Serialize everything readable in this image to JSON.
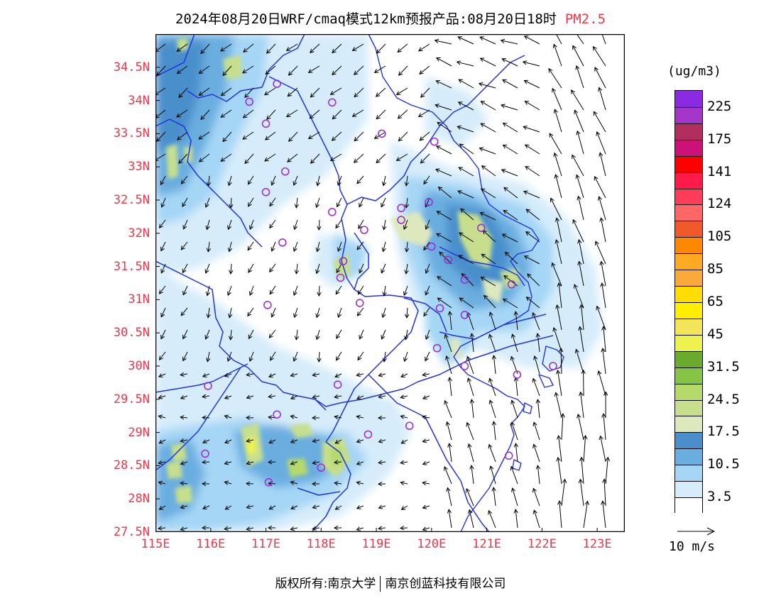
{
  "title": {
    "main": "2024年08月20日WRF/cmaq模式12km预报产品:08月20日18时",
    "pollutant": "PM2.5"
  },
  "map": {
    "lon_range": [
      115,
      123.5
    ],
    "lat_range": [
      27.5,
      35
    ],
    "lat_labels": [
      "34.5N",
      "34N",
      "33.5N",
      "33N",
      "32.5N",
      "32N",
      "31.5N",
      "31N",
      "30.5N",
      "30N",
      "29.5N",
      "29N",
      "28.5N",
      "28N",
      "27.5N"
    ],
    "lat_values": [
      34.5,
      34,
      33.5,
      33,
      32.5,
      32,
      31.5,
      31,
      30.5,
      30,
      29.5,
      29,
      28.5,
      28,
      27.5
    ],
    "lon_labels": [
      "115E",
      "116E",
      "117E",
      "118E",
      "119E",
      "120E",
      "121E",
      "122E",
      "123E"
    ],
    "lon_values": [
      115,
      116,
      117,
      118,
      119,
      120,
      121,
      122,
      123
    ],
    "boundary_color": "#2233dd",
    "station_color": "#9b30d9",
    "stations": [
      [
        116.7,
        33.98
      ],
      [
        117.2,
        34.25
      ],
      [
        118.2,
        33.97
      ],
      [
        117.0,
        33.65
      ],
      [
        119.1,
        33.5
      ],
      [
        120.05,
        33.38
      ],
      [
        117.35,
        32.93
      ],
      [
        117.0,
        32.62
      ],
      [
        118.2,
        32.32
      ],
      [
        118.78,
        32.05
      ],
      [
        117.3,
        31.86
      ],
      [
        119.45,
        32.38
      ],
      [
        119.45,
        32.2
      ],
      [
        119.95,
        32.47
      ],
      [
        120.0,
        31.8
      ],
      [
        120.9,
        32.08
      ],
      [
        120.3,
        31.6
      ],
      [
        120.6,
        31.3
      ],
      [
        118.4,
        31.58
      ],
      [
        118.35,
        31.33
      ],
      [
        117.03,
        30.92
      ],
      [
        118.7,
        30.95
      ],
      [
        121.45,
        31.23
      ],
      [
        120.15,
        30.87
      ],
      [
        120.6,
        30.77
      ],
      [
        120.1,
        30.27
      ],
      [
        120.6,
        30.0
      ],
      [
        121.55,
        29.87
      ],
      [
        122.2,
        30.0
      ],
      [
        115.95,
        29.7
      ],
      [
        118.3,
        29.72
      ],
      [
        117.2,
        29.27
      ],
      [
        119.6,
        29.1
      ],
      [
        118.85,
        28.97
      ],
      [
        115.9,
        28.68
      ],
      [
        117.05,
        28.25
      ],
      [
        118.0,
        28.47
      ],
      [
        121.4,
        28.65
      ]
    ]
  },
  "legend": {
    "unit": "(ug/m3)",
    "bins": [
      {
        "label": "225",
        "color": "#8a2be2"
      },
      {
        "label": "",
        "color": "#a335c8"
      },
      {
        "label": "175",
        "color": "#b22e5e"
      },
      {
        "label": "",
        "color": "#cc1177"
      },
      {
        "label": "141",
        "color": "#ff0000"
      },
      {
        "label": "",
        "color": "#ff1a4a"
      },
      {
        "label": "124",
        "color": "#ff3d5a"
      },
      {
        "label": "",
        "color": "#ff6666"
      },
      {
        "label": "105",
        "color": "#f05a2a"
      },
      {
        "label": "",
        "color": "#ff8800"
      },
      {
        "label": "85",
        "color": "#ffaa22"
      },
      {
        "label": "",
        "color": "#f9a93a"
      },
      {
        "label": "65",
        "color": "#ffdd00"
      },
      {
        "label": "",
        "color": "#ffee00"
      },
      {
        "label": "45",
        "color": "#f3e55a"
      },
      {
        "label": "",
        "color": "#eef24f"
      },
      {
        "label": "31.5",
        "color": "#6aaa2e"
      },
      {
        "label": "",
        "color": "#86c446"
      },
      {
        "label": "24.5",
        "color": "#b6d96c"
      },
      {
        "label": "",
        "color": "#c7df8c"
      },
      {
        "label": "17.5",
        "color": "#dde8bd"
      },
      {
        "label": "",
        "color": "#4a8fcc"
      },
      {
        "label": "10.5",
        "color": "#6aaee0"
      },
      {
        "label": "",
        "color": "#a5d6f5"
      },
      {
        "label": "3.5",
        "color": "#d6ecfb"
      },
      {
        "label": "",
        "color": "#ffffff"
      }
    ]
  },
  "wind_reference": {
    "label": "10 m/s",
    "speed": 10
  },
  "footer": {
    "left": "版权所有:南京大学",
    "right": "南京创蓝科技有限公司"
  }
}
